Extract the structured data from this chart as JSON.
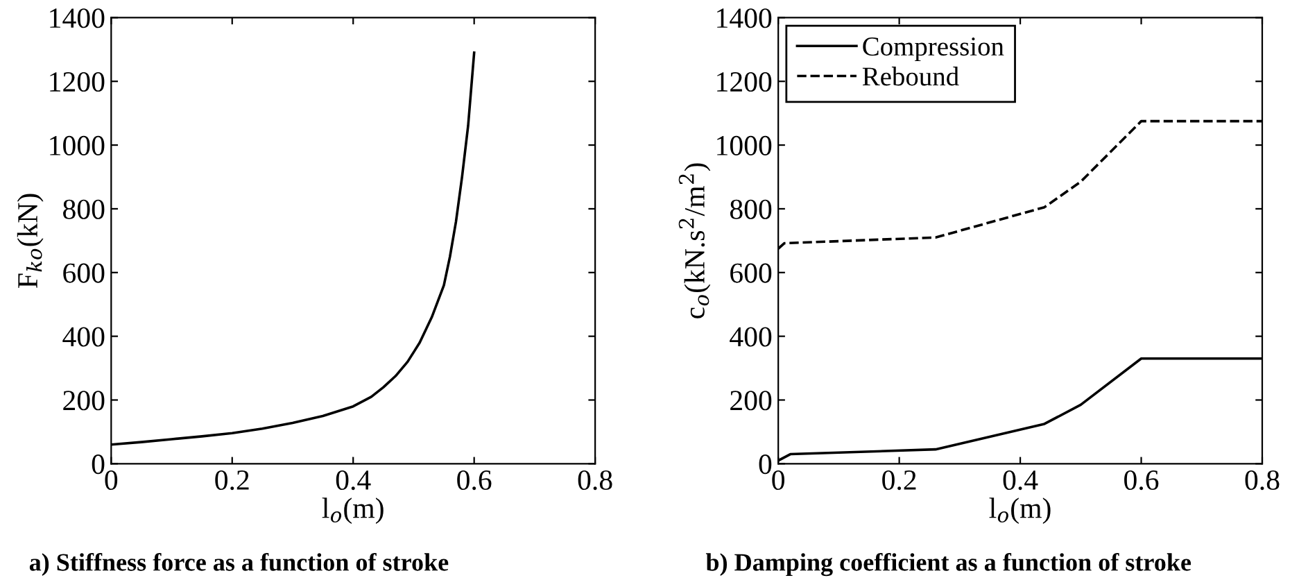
{
  "chart_data": [
    {
      "type": "line",
      "title": "a) Stiffness force as a function of stroke",
      "xlabel": "l$_{o}$(m)",
      "ylabel": "F$_{ko}$(kN)",
      "xlim": [
        0,
        0.8
      ],
      "ylim": [
        0,
        1400
      ],
      "xticks": [
        0,
        0.2,
        0.4,
        0.6,
        0.8
      ],
      "yticks": [
        0,
        200,
        400,
        600,
        800,
        1000,
        1200,
        1400
      ],
      "grid": false,
      "legend": false,
      "series": [
        {
          "color": "#000000",
          "line_style": "solid",
          "x": [
            0,
            0.05,
            0.1,
            0.15,
            0.2,
            0.25,
            0.3,
            0.35,
            0.4,
            0.43,
            0.45,
            0.47,
            0.49,
            0.5,
            0.51,
            0.53,
            0.55,
            0.56,
            0.57,
            0.58,
            0.59,
            0.6
          ],
          "values": [
            60,
            68,
            77,
            86,
            96,
            110,
            128,
            150,
            180,
            210,
            240,
            275,
            320,
            350,
            380,
            460,
            560,
            650,
            760,
            900,
            1060,
            1290
          ]
        }
      ]
    },
    {
      "type": "line",
      "title": "b) Damping coefficient as a function of stroke",
      "xlabel": "l$_{o}$(m)",
      "ylabel": "c$_{o}$(kN.s$^{2}$/m$^{2}$)",
      "xlim": [
        0,
        0.8
      ],
      "ylim": [
        0,
        1400
      ],
      "xticks": [
        0,
        0.2,
        0.4,
        0.6,
        0.8
      ],
      "yticks": [
        0,
        200,
        400,
        600,
        800,
        1000,
        1200,
        1400
      ],
      "grid": false,
      "legend": "top left",
      "series": [
        {
          "name": "Compression",
          "color": "#000000",
          "line_style": "solid",
          "x": [
            0,
            0.02,
            0.26,
            0.44,
            0.5,
            0.6,
            0.8
          ],
          "values": [
            10,
            30,
            45,
            125,
            185,
            330,
            330
          ]
        },
        {
          "name": "Rebound",
          "color": "#000000",
          "line_style": "dashed",
          "x": [
            0,
            0.01,
            0.26,
            0.44,
            0.5,
            0.6,
            0.8
          ],
          "values": [
            675,
            692,
            710,
            805,
            885,
            1075,
            1075
          ]
        }
      ]
    }
  ]
}
